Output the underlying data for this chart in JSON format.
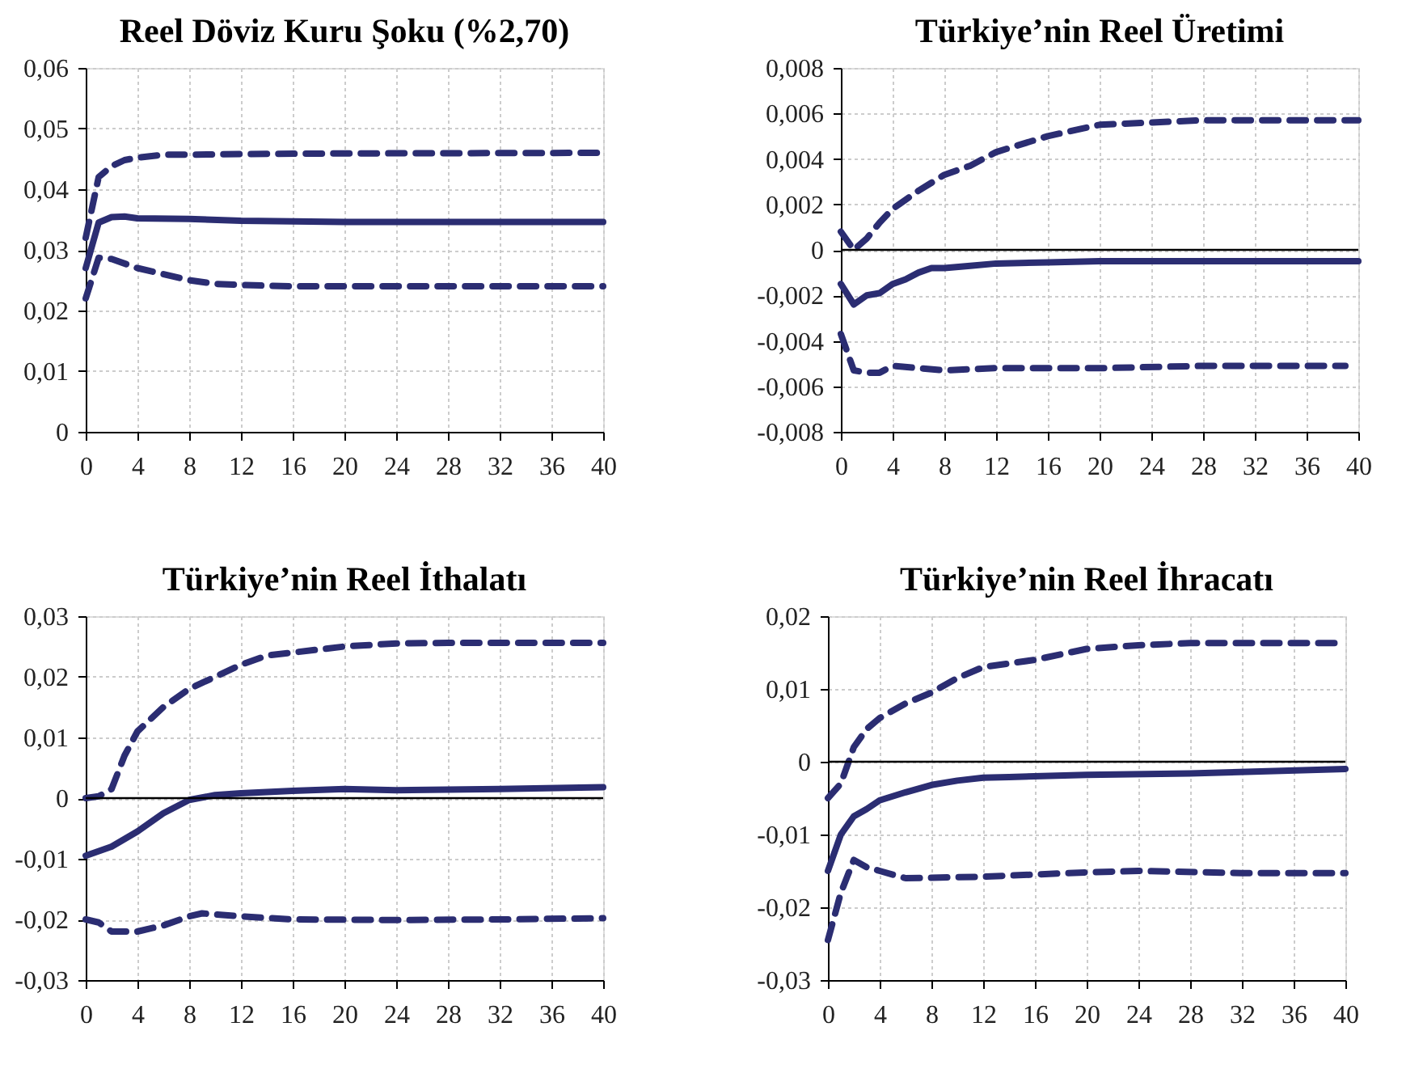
{
  "chart_data": [
    {
      "type": "line",
      "title": "Reel Döviz Kuru Şoku (%2,70)",
      "xlim": [
        0,
        40
      ],
      "xticks": [
        0,
        4,
        8,
        12,
        16,
        20,
        24,
        28,
        32,
        36,
        40
      ],
      "ylim": [
        0,
        0.06
      ],
      "yticks": [
        {
          "value": 0,
          "label": "0"
        },
        {
          "value": 0.01,
          "label": "0,01"
        },
        {
          "value": 0.02,
          "label": "0,02"
        },
        {
          "value": 0.03,
          "label": "0,03"
        },
        {
          "value": 0.04,
          "label": "0,04"
        },
        {
          "value": 0.05,
          "label": "0,05"
        },
        {
          "value": 0.06,
          "label": "0,06"
        }
      ],
      "grid": true,
      "marker": "none",
      "series": [
        {
          "color": "#2b2d72",
          "line_style": "solid",
          "x": [
            0,
            1,
            2,
            3,
            4,
            8,
            12,
            20,
            40
          ],
          "values": [
            0.027,
            0.0345,
            0.0354,
            0.0355,
            0.0352,
            0.0351,
            0.0348,
            0.0346,
            0.0346
          ]
        },
        {
          "color": "#2b2d72",
          "line_style": "dashed",
          "x": [
            0,
            1,
            2,
            3,
            4,
            6,
            8,
            12,
            20,
            40
          ],
          "values": [
            0.032,
            0.042,
            0.0438,
            0.0448,
            0.0452,
            0.0457,
            0.0457,
            0.0458,
            0.0459,
            0.046
          ]
        },
        {
          "color": "#2b2d72",
          "line_style": "dashed",
          "x": [
            0,
            1,
            2,
            4,
            6,
            8,
            10,
            12,
            16,
            40
          ],
          "values": [
            0.022,
            0.0287,
            0.0285,
            0.027,
            0.026,
            0.025,
            0.0244,
            0.0242,
            0.024,
            0.024
          ]
        }
      ]
    },
    {
      "type": "line",
      "title": "Türkiye’nin Reel Üretimi",
      "xlim": [
        0,
        40
      ],
      "xticks": [
        0,
        4,
        8,
        12,
        16,
        20,
        24,
        28,
        32,
        36,
        40
      ],
      "ylim": [
        -0.008,
        0.008
      ],
      "yticks": [
        {
          "value": -0.008,
          "label": "-0,008"
        },
        {
          "value": -0.006,
          "label": "-0,006"
        },
        {
          "value": -0.004,
          "label": "-0,004"
        },
        {
          "value": -0.002,
          "label": "-0,002"
        },
        {
          "value": 0,
          "label": "0"
        },
        {
          "value": 0.002,
          "label": "0,002"
        },
        {
          "value": 0.004,
          "label": "0,004"
        },
        {
          "value": 0.006,
          "label": "0,006"
        },
        {
          "value": 0.008,
          "label": "0,008"
        }
      ],
      "grid": true,
      "marker": "none",
      "ref_lines": [
        {
          "axis": "y",
          "value": 0,
          "color": "#000000"
        }
      ],
      "series": [
        {
          "color": "#2b2d72",
          "line_style": "solid",
          "x": [
            0,
            1,
            2,
            3,
            4,
            5,
            6,
            7,
            8,
            10,
            12,
            16,
            20,
            40
          ],
          "values": [
            -0.0015,
            -0.0024,
            -0.002,
            -0.0019,
            -0.0015,
            -0.0013,
            -0.001,
            -0.0008,
            -0.0008,
            -0.0007,
            -0.0006,
            -0.00055,
            -0.0005,
            -0.0005
          ]
        },
        {
          "color": "#2b2d72",
          "line_style": "dashed",
          "x": [
            0,
            1,
            2,
            3,
            4,
            6,
            8,
            10,
            12,
            16,
            20,
            24,
            28,
            40
          ],
          "values": [
            0.0008,
            0.0,
            0.0005,
            0.0012,
            0.0018,
            0.0026,
            0.0033,
            0.0037,
            0.0043,
            0.005,
            0.0055,
            0.0056,
            0.0057,
            0.0057
          ]
        },
        {
          "color": "#2b2d72",
          "line_style": "dashed",
          "x": [
            0,
            1,
            2,
            3,
            4,
            6,
            8,
            12,
            20,
            28,
            39
          ],
          "values": [
            -0.0037,
            -0.0053,
            -0.0054,
            -0.0054,
            -0.0051,
            -0.0052,
            -0.0053,
            -0.0052,
            -0.0052,
            -0.0051,
            -0.0051
          ]
        }
      ]
    },
    {
      "type": "line",
      "title": "Türkiye’nin Reel İthalatı",
      "xlim": [
        0,
        40
      ],
      "xticks": [
        0,
        4,
        8,
        12,
        16,
        20,
        24,
        28,
        32,
        36,
        40
      ],
      "ylim": [
        -0.03,
        0.03
      ],
      "yticks": [
        {
          "value": -0.03,
          "label": "-0,03"
        },
        {
          "value": -0.02,
          "label": "-0,02"
        },
        {
          "value": -0.01,
          "label": "-0,01"
        },
        {
          "value": 0,
          "label": "0"
        },
        {
          "value": 0.01,
          "label": "0,01"
        },
        {
          "value": 0.02,
          "label": "0,02"
        },
        {
          "value": 0.03,
          "label": "0,03"
        }
      ],
      "grid": true,
      "marker": "none",
      "ref_lines": [
        {
          "axis": "y",
          "value": 0,
          "color": "#000000"
        }
      ],
      "series": [
        {
          "color": "#2b2d72",
          "line_style": "solid",
          "x": [
            0,
            2,
            4,
            6,
            8,
            10,
            12,
            16,
            20,
            24,
            32,
            40
          ],
          "values": [
            -0.0095,
            -0.008,
            -0.0055,
            -0.0025,
            -0.0003,
            0.0005,
            0.0008,
            0.0012,
            0.0015,
            0.0013,
            0.0015,
            0.0018
          ]
        },
        {
          "color": "#2b2d72",
          "line_style": "dashed",
          "x": [
            0,
            1,
            2,
            3,
            4,
            6,
            8,
            10,
            12,
            14,
            16,
            20,
            24,
            28,
            40
          ],
          "values": [
            0.0,
            0.0003,
            0.0015,
            0.007,
            0.011,
            0.015,
            0.018,
            0.02,
            0.022,
            0.0235,
            0.024,
            0.025,
            0.0255,
            0.0256,
            0.0256
          ]
        },
        {
          "color": "#2b2d72",
          "line_style": "dashed",
          "x": [
            0,
            1,
            2,
            4,
            6,
            8,
            9,
            12,
            16,
            24,
            32,
            40
          ],
          "values": [
            -0.02,
            -0.0205,
            -0.022,
            -0.022,
            -0.021,
            -0.0195,
            -0.019,
            -0.0195,
            -0.02,
            -0.0201,
            -0.02,
            -0.0198
          ]
        }
      ]
    },
    {
      "type": "line",
      "title": "Türkiye’nin Reel İhracatı",
      "xlim": [
        0,
        40
      ],
      "xticks": [
        0,
        4,
        8,
        12,
        16,
        20,
        24,
        28,
        32,
        36,
        40
      ],
      "ylim": [
        -0.03,
        0.02
      ],
      "yticks": [
        {
          "value": -0.03,
          "label": "-0,03"
        },
        {
          "value": -0.02,
          "label": "-0,02"
        },
        {
          "value": -0.01,
          "label": "-0,01"
        },
        {
          "value": 0,
          "label": "0"
        },
        {
          "value": 0.01,
          "label": "0,01"
        },
        {
          "value": 0.02,
          "label": "0,02"
        }
      ],
      "grid": true,
      "marker": "none",
      "ref_lines": [
        {
          "axis": "y",
          "value": 0,
          "color": "#000000"
        }
      ],
      "series": [
        {
          "color": "#2b2d72",
          "line_style": "solid",
          "x": [
            0,
            1,
            2,
            3,
            4,
            6,
            8,
            10,
            12,
            14,
            20,
            28,
            40
          ],
          "values": [
            -0.015,
            -0.01,
            -0.0075,
            -0.0065,
            -0.0053,
            -0.0042,
            -0.0032,
            -0.0026,
            -0.0022,
            -0.0021,
            -0.0018,
            -0.0016,
            -0.001
          ]
        },
        {
          "color": "#2b2d72",
          "line_style": "dashed",
          "x": [
            0,
            1,
            2,
            3,
            4,
            6,
            8,
            10,
            12,
            16,
            20,
            24,
            28,
            40
          ],
          "values": [
            -0.005,
            -0.003,
            0.002,
            0.0045,
            0.006,
            0.008,
            0.0095,
            0.0115,
            0.013,
            0.014,
            0.0155,
            0.016,
            0.0163,
            0.0163
          ]
        },
        {
          "color": "#2b2d72",
          "line_style": "dashed",
          "x": [
            0,
            1,
            2,
            3,
            4,
            6,
            12,
            20,
            24,
            32,
            40
          ],
          "values": [
            -0.0245,
            -0.018,
            -0.0135,
            -0.0145,
            -0.015,
            -0.016,
            -0.0158,
            -0.0152,
            -0.015,
            -0.0153,
            -0.0153
          ]
        }
      ]
    }
  ]
}
